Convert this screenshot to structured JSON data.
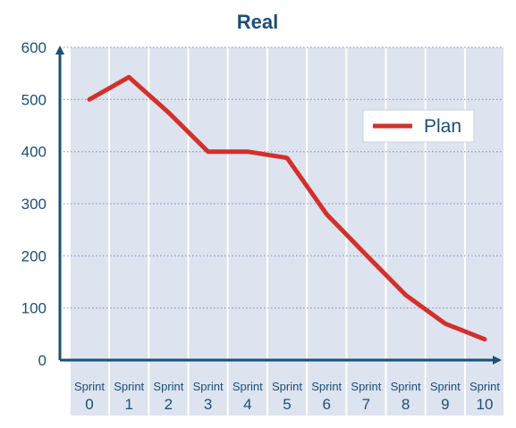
{
  "chart_data": {
    "type": "line",
    "title": "Real",
    "xlabel": "",
    "ylabel": "",
    "categories": [
      {
        "top": "Sprint",
        "bottom": "0"
      },
      {
        "top": "Sprint",
        "bottom": "1"
      },
      {
        "top": "Sprint",
        "bottom": "2"
      },
      {
        "top": "Sprint",
        "bottom": "3"
      },
      {
        "top": "Sprint",
        "bottom": "4"
      },
      {
        "top": "Sprint",
        "bottom": "5"
      },
      {
        "top": "Sprint",
        "bottom": "6"
      },
      {
        "top": "Sprint",
        "bottom": "7"
      },
      {
        "top": "Sprint",
        "bottom": "8"
      },
      {
        "top": "Sprint",
        "bottom": "9"
      },
      {
        "top": "Sprint",
        "bottom": "10"
      }
    ],
    "y_ticks": [
      "0",
      "100",
      "200",
      "300",
      "400",
      "500",
      "600"
    ],
    "ylim": [
      0,
      600
    ],
    "series": [
      {
        "name": "Plan",
        "values": [
          500,
          543,
          475,
          400,
          400,
          388,
          280,
          202,
          125,
          70,
          40
        ],
        "color": "#d2312b"
      }
    ],
    "legend_position": "right",
    "grid": true,
    "colors": {
      "axis": "#1b4f77",
      "column_fill": "#dde3ef",
      "grid": "#7b8dc2",
      "text": "#1b4f77"
    }
  }
}
